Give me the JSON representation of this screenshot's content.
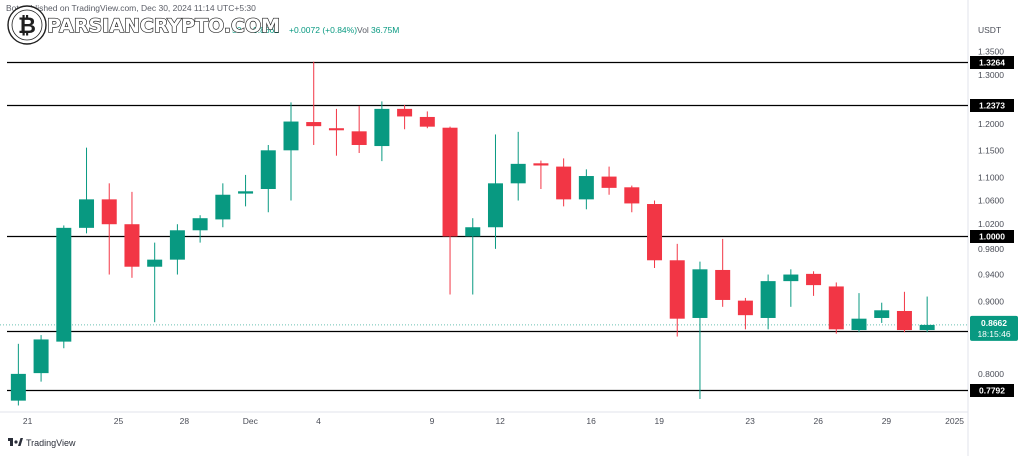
{
  "header": {
    "info_line": "Bot published on TradingView.com, Dec 30, 2024 11:14 UTC+5:30",
    "ohlc_tail": "50",
    "close_value": "0.8662",
    "change_text": "+0.0072 (+0.84%)",
    "volume_label": "Vol",
    "volume_value": "36.75M"
  },
  "watermark": {
    "text": "PARSIANCRYPTO.COM"
  },
  "branding": {
    "text": "TradingView"
  },
  "colors": {
    "up": "#089981",
    "down": "#f23645",
    "level_line": "#000000",
    "label_bg": "#000000"
  },
  "chart_data": {
    "type": "candlestick",
    "currency": "USDT",
    "title": "",
    "xlabel": "",
    "ylabel": "",
    "ylim": [
      0.752,
      1.38
    ],
    "y_scale": "log",
    "x_range": [
      0,
      39.5
    ],
    "grid": false,
    "y_ticks": [
      "1.3500",
      "1.3000",
      "1.2500",
      "1.2000",
      "1.1500",
      "1.1000",
      "1.0600",
      "1.0200",
      "0.9800",
      "0.9400",
      "0.9000",
      "0.8000",
      "0.7700"
    ],
    "x_ticks": [
      {
        "pos": 1.2,
        "label": "21"
      },
      {
        "pos": 5.2,
        "label": "25"
      },
      {
        "pos": 8.1,
        "label": "28"
      },
      {
        "pos": 11.0,
        "label": "Dec"
      },
      {
        "pos": 14.0,
        "label": "4"
      },
      {
        "pos": 19.0,
        "label": "9"
      },
      {
        "pos": 22.0,
        "label": "12"
      },
      {
        "pos": 26.0,
        "label": "16"
      },
      {
        "pos": 29.0,
        "label": "19"
      },
      {
        "pos": 33.0,
        "label": "23"
      },
      {
        "pos": 36.0,
        "label": "26"
      },
      {
        "pos": 39.0,
        "label": "29"
      },
      {
        "pos": 42.0,
        "label": "2025"
      }
    ],
    "levels": [
      {
        "value": 1.3264,
        "label": "1.3264"
      },
      {
        "value": 1.2373,
        "label": "1.2373"
      },
      {
        "value": 1.0,
        "label": "1.0000"
      },
      {
        "value": 0.8576,
        "label": "0.8576"
      },
      {
        "value": 0.7792,
        "label": "0.7792"
      }
    ],
    "last_price": {
      "value": 0.8662,
      "label": "0.8662",
      "countdown": "18:15:46"
    },
    "candles": [
      {
        "o": 0.766,
        "h": 0.84,
        "l": 0.76,
        "c": 0.8
      },
      {
        "o": 0.801,
        "h": 0.852,
        "l": 0.79,
        "c": 0.846
      },
      {
        "o": 0.843,
        "h": 1.018,
        "l": 0.834,
        "c": 1.014
      },
      {
        "o": 1.014,
        "h": 1.155,
        "l": 1.005,
        "c": 1.062
      },
      {
        "o": 1.062,
        "h": 1.09,
        "l": 0.94,
        "c": 1.02
      },
      {
        "o": 1.02,
        "h": 1.075,
        "l": 0.935,
        "c": 0.952
      },
      {
        "o": 0.952,
        "h": 0.99,
        "l": 0.87,
        "c": 0.963
      },
      {
        "o": 0.963,
        "h": 1.02,
        "l": 0.94,
        "c": 1.01
      },
      {
        "o": 1.01,
        "h": 1.035,
        "l": 0.99,
        "c": 1.03
      },
      {
        "o": 1.028,
        "h": 1.09,
        "l": 1.015,
        "c": 1.07
      },
      {
        "o": 1.072,
        "h": 1.105,
        "l": 1.05,
        "c": 1.076
      },
      {
        "o": 1.08,
        "h": 1.16,
        "l": 1.04,
        "c": 1.15
      },
      {
        "o": 1.15,
        "h": 1.243,
        "l": 1.06,
        "c": 1.205
      },
      {
        "o": 1.204,
        "h": 1.328,
        "l": 1.16,
        "c": 1.196
      },
      {
        "o": 1.192,
        "h": 1.23,
        "l": 1.14,
        "c": 1.188
      },
      {
        "o": 1.186,
        "h": 1.236,
        "l": 1.145,
        "c": 1.16
      },
      {
        "o": 1.158,
        "h": 1.245,
        "l": 1.13,
        "c": 1.23
      },
      {
        "o": 1.23,
        "h": 1.238,
        "l": 1.19,
        "c": 1.215
      },
      {
        "o": 1.214,
        "h": 1.225,
        "l": 1.192,
        "c": 1.195
      },
      {
        "o": 1.193,
        "h": 1.195,
        "l": 0.91,
        "c": 1.0
      },
      {
        "o": 1.0,
        "h": 1.03,
        "l": 0.91,
        "c": 1.015
      },
      {
        "o": 1.015,
        "h": 1.18,
        "l": 0.98,
        "c": 1.09
      },
      {
        "o": 1.09,
        "h": 1.185,
        "l": 1.06,
        "c": 1.125
      },
      {
        "o": 1.126,
        "h": 1.131,
        "l": 1.08,
        "c": 1.122
      },
      {
        "o": 1.12,
        "h": 1.135,
        "l": 1.05,
        "c": 1.062
      },
      {
        "o": 1.062,
        "h": 1.115,
        "l": 1.045,
        "c": 1.103
      },
      {
        "o": 1.102,
        "h": 1.12,
        "l": 1.07,
        "c": 1.082
      },
      {
        "o": 1.083,
        "h": 1.086,
        "l": 1.04,
        "c": 1.055
      },
      {
        "o": 1.054,
        "h": 1.06,
        "l": 0.95,
        "c": 0.962
      },
      {
        "o": 0.962,
        "h": 0.988,
        "l": 0.85,
        "c": 0.875
      },
      {
        "o": 0.876,
        "h": 0.96,
        "l": 0.768,
        "c": 0.948
      },
      {
        "o": 0.947,
        "h": 0.996,
        "l": 0.892,
        "c": 0.902
      },
      {
        "o": 0.901,
        "h": 0.905,
        "l": 0.86,
        "c": 0.88
      },
      {
        "o": 0.876,
        "h": 0.94,
        "l": 0.86,
        "c": 0.93
      },
      {
        "o": 0.93,
        "h": 0.948,
        "l": 0.892,
        "c": 0.94
      },
      {
        "o": 0.941,
        "h": 0.945,
        "l": 0.908,
        "c": 0.924
      },
      {
        "o": 0.922,
        "h": 0.928,
        "l": 0.854,
        "c": 0.86
      },
      {
        "o": 0.859,
        "h": 0.912,
        "l": 0.856,
        "c": 0.875
      },
      {
        "o": 0.876,
        "h": 0.898,
        "l": 0.869,
        "c": 0.887
      },
      {
        "o": 0.886,
        "h": 0.914,
        "l": 0.856,
        "c": 0.859
      },
      {
        "o": 0.859,
        "h": 0.907,
        "l": 0.856,
        "c": 0.8662
      }
    ]
  }
}
